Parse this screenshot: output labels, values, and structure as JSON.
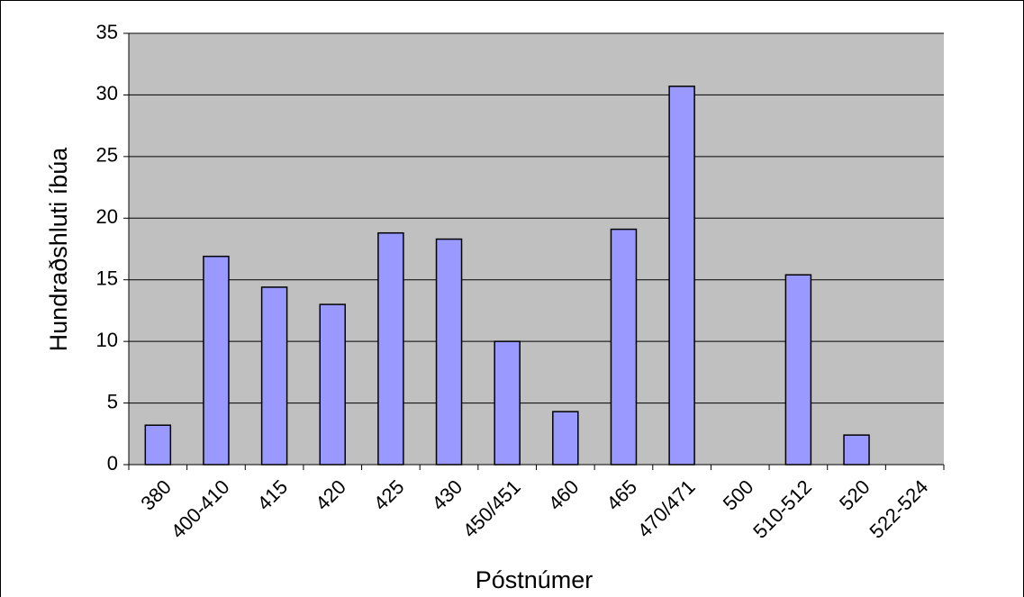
{
  "chart_data": {
    "type": "bar",
    "categories": [
      "380",
      "400-410",
      "415",
      "420",
      "425",
      "430",
      "450/451",
      "460",
      "465",
      "470/471",
      "500",
      "510-512",
      "520",
      "522-524"
    ],
    "values": [
      3.2,
      16.9,
      14.4,
      13.0,
      18.8,
      18.3,
      10.0,
      4.3,
      19.1,
      30.7,
      0,
      15.4,
      2.4,
      0
    ],
    "color": "#9999ff",
    "x_label": "Póstnúmer",
    "y_label": "Hundraðshluti íbúa",
    "ylim": [
      0,
      35
    ],
    "yticks": [
      0,
      5,
      10,
      15,
      20,
      25,
      30,
      35
    ],
    "grid": true
  }
}
